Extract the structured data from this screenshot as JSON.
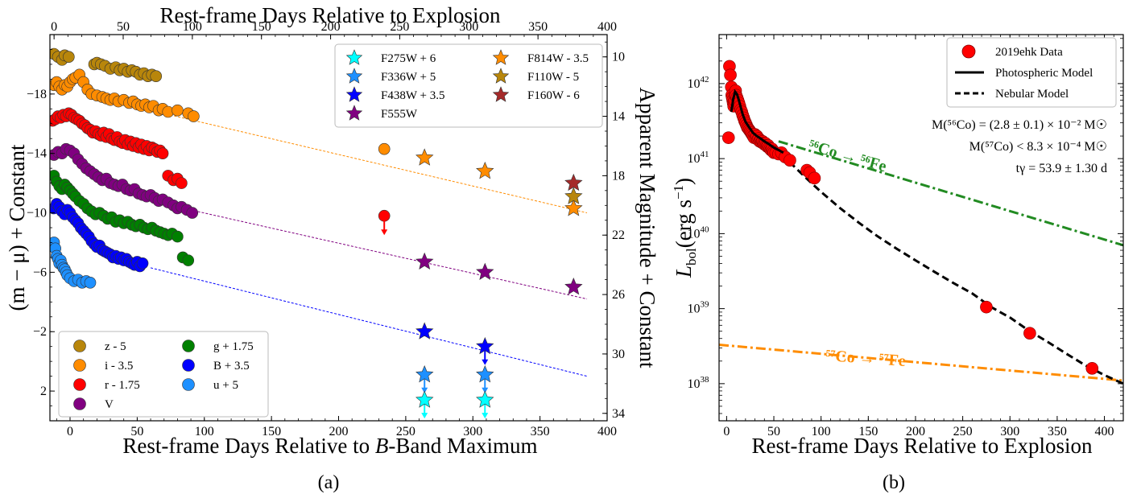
{
  "captions": {
    "a": "(a)",
    "b": "(b)"
  },
  "chart_data": [
    {
      "type": "scatter",
      "panel": "a",
      "xlabel": "Rest-frame Days Relative to B-Band Maximum",
      "ylabel": "(m − μ) + Constant",
      "x2label": "Rest-frame Days Relative to Explosion",
      "y2label": "Apparent Magnitude + Constant",
      "xlim": [
        -15,
        400
      ],
      "ylim_inverted": [
        4,
        -22
      ],
      "x2lim": [
        -3,
        400
      ],
      "xticks": [
        0,
        50,
        100,
        150,
        200,
        250,
        300,
        350,
        400
      ],
      "yticks": [
        -18,
        -14,
        -10,
        -6,
        -2,
        2
      ],
      "x2ticks": [
        0,
        50,
        100,
        150,
        200,
        250,
        300,
        350,
        400
      ],
      "y2ticks": [
        10,
        14,
        18,
        22,
        26,
        30,
        34
      ],
      "legend_ground": [
        {
          "label": "z - 5",
          "color": "#b8860b"
        },
        {
          "label": "i - 3.5",
          "color": "#ff8c00"
        },
        {
          "label": "r - 1.75",
          "color": "#ff0000"
        },
        {
          "label": "V",
          "color": "#800080"
        },
        {
          "label": "g + 1.75",
          "color": "#008000"
        },
        {
          "label": "B + 3.5",
          "color": "#0000ff"
        },
        {
          "label": "u + 5",
          "color": "#1e90ff"
        }
      ],
      "legend_hst": [
        {
          "label": "F275W + 6",
          "color": "#00ffff"
        },
        {
          "label": "F336W + 5",
          "color": "#1e90ff"
        },
        {
          "label": "F438W + 3.5",
          "color": "#0000ff"
        },
        {
          "label": "F555W",
          "color": "#800080"
        },
        {
          "label": "F814W - 3.5",
          "color": "#ff8c00"
        },
        {
          "label": "F110W - 5",
          "color": "#b8860b"
        },
        {
          "label": "F160W - 6",
          "color": "#a52a2a"
        }
      ],
      "series": [
        {
          "name": "z - 5",
          "color": "#b8860b",
          "x": [
            -12,
            -9,
            -6,
            -4,
            -1,
            18,
            20,
            23,
            26,
            30,
            34,
            37,
            40,
            43,
            46,
            49,
            52,
            55,
            58,
            61,
            64
          ],
          "y": [
            -20.7,
            -20.5,
            -20.3,
            -20.6,
            -20.5,
            -20.0,
            -20.1,
            -20.0,
            -19.9,
            -19.7,
            -19.8,
            -19.6,
            -19.7,
            -19.5,
            -19.6,
            -19.5,
            -19.3,
            -19.4,
            -19.2,
            -19.3,
            -19.2
          ]
        },
        {
          "name": "i - 3.5",
          "color": "#ff8c00",
          "x": [
            -12,
            -10,
            -8,
            -6,
            -4,
            -2,
            0,
            2,
            4,
            7,
            10,
            13,
            16,
            20,
            24,
            27,
            30,
            33,
            36,
            40,
            44,
            47,
            50,
            53,
            56,
            59,
            62,
            66,
            69,
            73,
            80,
            88,
            92,
            234
          ],
          "y": [
            -18.6,
            -18.8,
            -18.5,
            -18.3,
            -18.6,
            -18.5,
            -18.8,
            -19.0,
            -19.1,
            -19.3,
            -18.8,
            -18.3,
            -18.0,
            -17.9,
            -17.8,
            -17.7,
            -17.6,
            -17.7,
            -17.5,
            -17.6,
            -17.4,
            -17.5,
            -17.3,
            -17.2,
            -17.3,
            -17.1,
            -17.2,
            -16.9,
            -17.0,
            -16.8,
            -16.9,
            -16.7,
            -16.5,
            -14.3
          ]
        },
        {
          "name": "r - 1.75",
          "color": "#ff0000",
          "x": [
            -13,
            -11,
            -9,
            -7,
            -5,
            -3,
            -1,
            1,
            3,
            5,
            7,
            9,
            11,
            13,
            15,
            17,
            19,
            21,
            23,
            25,
            27,
            29,
            31,
            33,
            35,
            37,
            39,
            41,
            43,
            45,
            47,
            49,
            51,
            53,
            55,
            57,
            59,
            61,
            63,
            65,
            67,
            69,
            73,
            77,
            80,
            83
          ],
          "y": [
            -16.2,
            -16.3,
            -16.5,
            -16.4,
            -16.6,
            -16.5,
            -16.7,
            -16.6,
            -16.4,
            -16.3,
            -16.2,
            -16.0,
            -15.9,
            -15.7,
            -15.6,
            -15.4,
            -15.5,
            -15.3,
            -15.2,
            -15.4,
            -15.1,
            -15.3,
            -15.0,
            -14.9,
            -15.1,
            -14.8,
            -14.7,
            -14.9,
            -14.6,
            -14.8,
            -14.5,
            -14.7,
            -14.4,
            -14.6,
            -14.3,
            -14.5,
            -14.2,
            -14.4,
            -14.3,
            -14.1,
            -14.2,
            -14.0,
            -12.5,
            -12.2,
            -12.3,
            -12.0
          ]
        },
        {
          "name": "V",
          "color": "#800080",
          "x": [
            -12,
            -9,
            -6,
            -3,
            0,
            3,
            6,
            9,
            12,
            15,
            18,
            21,
            24,
            27,
            30,
            33,
            36,
            39,
            42,
            45,
            48,
            51,
            54,
            57,
            60,
            63,
            66,
            69,
            73,
            77,
            80,
            83,
            87,
            91
          ],
          "y": [
            -13.9,
            -14.1,
            -14.0,
            -14.3,
            -14.2,
            -14.0,
            -13.6,
            -13.3,
            -13.0,
            -12.8,
            -12.6,
            -12.4,
            -12.2,
            -12.3,
            -12.0,
            -11.9,
            -11.8,
            -11.9,
            -11.6,
            -11.5,
            -11.6,
            -11.3,
            -11.2,
            -11.1,
            -11.2,
            -11.0,
            -10.8,
            -10.9,
            -10.7,
            -10.5,
            -10.3,
            -10.4,
            -10.2,
            -10.0
          ]
        },
        {
          "name": "g + 1.75",
          "color": "#008000",
          "x": [
            -12,
            -10,
            -8,
            -6,
            -4,
            -2,
            0,
            2,
            4,
            7,
            10,
            13,
            16,
            19,
            22,
            25,
            28,
            31,
            34,
            37,
            40,
            43,
            46,
            49,
            52,
            55,
            58,
            61,
            64,
            67,
            70,
            73,
            76,
            80,
            84,
            88
          ],
          "y": [
            -12.5,
            -12.1,
            -11.8,
            -11.6,
            -11.9,
            -11.7,
            -11.5,
            -11.3,
            -11.1,
            -10.8,
            -10.6,
            -10.3,
            -10.1,
            -9.9,
            -10.0,
            -9.8,
            -9.6,
            -9.7,
            -9.4,
            -9.5,
            -9.3,
            -9.4,
            -9.2,
            -9.1,
            -9.2,
            -9.0,
            -8.9,
            -9.0,
            -8.8,
            -8.7,
            -8.6,
            -8.5,
            -8.6,
            -8.4,
            -7.0,
            -6.8
          ]
        },
        {
          "name": "B + 3.5",
          "color": "#0000ff",
          "x": [
            -12,
            -10,
            -8,
            -6,
            -4,
            -2,
            0,
            2,
            4,
            6,
            8,
            10,
            12,
            14,
            16,
            18,
            20,
            22,
            24,
            26,
            28,
            30,
            32,
            34,
            36,
            38,
            40,
            42,
            44,
            46,
            48,
            50,
            52,
            54
          ],
          "y": [
            -10.3,
            -10.6,
            -10.4,
            -10.1,
            -9.9,
            -10.2,
            -10.0,
            -9.7,
            -9.5,
            -9.3,
            -9.0,
            -8.8,
            -8.6,
            -8.4,
            -8.1,
            -7.9,
            -7.7,
            -7.8,
            -7.5,
            -7.4,
            -7.3,
            -7.2,
            -7.0,
            -7.1,
            -6.9,
            -7.0,
            -6.8,
            -6.9,
            -6.7,
            -6.6,
            -6.5,
            -6.7,
            -6.4,
            -6.6
          ]
        },
        {
          "name": "u + 5",
          "color": "#1e90ff",
          "x": [
            -12,
            -11,
            -10,
            -9,
            -8,
            -7,
            -6,
            -5,
            -4,
            -3,
            -2,
            0,
            3,
            6,
            9,
            12,
            15
          ],
          "y": [
            -8.0,
            -7.6,
            -7.1,
            -6.9,
            -6.6,
            -6.8,
            -6.5,
            -6.3,
            -6.2,
            -6.0,
            -5.8,
            -5.6,
            -5.4,
            -5.5,
            -5.3,
            -5.4,
            -5.3
          ]
        }
      ],
      "upper_limits_ground": [
        {
          "band": "r - 1.75",
          "x": 234,
          "y": -9.8,
          "color": "#ff0000"
        }
      ],
      "hst_points": [
        {
          "band": "F814W - 3.5",
          "x": 264,
          "y": -13.7,
          "color": "#ff8c00",
          "limit": false
        },
        {
          "band": "F814W - 3.5",
          "x": 309,
          "y": -12.8,
          "color": "#ff8c00",
          "limit": false
        },
        {
          "band": "F814W - 3.5",
          "x": 375,
          "y": -10.3,
          "color": "#ff8c00",
          "limit": false
        },
        {
          "band": "F110W - 5",
          "x": 375,
          "y": -11.1,
          "color": "#b8860b",
          "limit": false
        },
        {
          "band": "F160W - 6",
          "x": 375,
          "y": -12.0,
          "color": "#a52a2a",
          "limit": false
        },
        {
          "band": "F555W",
          "x": 264,
          "y": -6.7,
          "color": "#800080",
          "limit": false
        },
        {
          "band": "F555W",
          "x": 309,
          "y": -6.0,
          "color": "#800080",
          "limit": false
        },
        {
          "band": "F555W",
          "x": 375,
          "y": -5.0,
          "color": "#800080",
          "limit": false
        },
        {
          "band": "F438W + 3.5",
          "x": 264,
          "y": -2.0,
          "color": "#0000ff",
          "limit": false
        },
        {
          "band": "F438W + 3.5",
          "x": 309,
          "y": -1.0,
          "color": "#0000ff",
          "limit": true
        },
        {
          "band": "F336W + 5",
          "x": 264,
          "y": 0.9,
          "color": "#1e90ff",
          "limit": true
        },
        {
          "band": "F336W + 5",
          "x": 309,
          "y": 0.9,
          "color": "#1e90ff",
          "limit": true
        },
        {
          "band": "F275W + 6",
          "x": 264,
          "y": 2.6,
          "color": "#00ffff",
          "limit": true
        },
        {
          "band": "F275W + 6",
          "x": 309,
          "y": 2.6,
          "color": "#00ffff",
          "limit": true
        }
      ],
      "trend_lines": [
        {
          "color": "#ff8c00",
          "x": [
            60,
            385
          ],
          "y": [
            -16.9,
            -10.0
          ]
        },
        {
          "color": "#800080",
          "x": [
            60,
            385
          ],
          "y": [
            -10.8,
            -4.2
          ]
        },
        {
          "color": "#0000ff",
          "x": [
            60,
            385
          ],
          "y": [
            -6.3,
            1.0
          ]
        }
      ]
    },
    {
      "type": "line",
      "panel": "b",
      "xlabel": "Rest-frame Days Relative to Explosion",
      "ylabel": "L_bol (erg s⁻¹)",
      "xlim": [
        -8,
        420
      ],
      "ylog": true,
      "ylim": [
        3.2e+37,
        4.5e+42
      ],
      "xticks": [
        0,
        50,
        100,
        150,
        200,
        250,
        300,
        350,
        400
      ],
      "yticks": [
        "10^38",
        "10^39",
        "10^40",
        "10^41",
        "10^42"
      ],
      "legend": [
        {
          "label": "2019ehk Data",
          "style": "marker",
          "color": "#ff0000"
        },
        {
          "label": "Photospheric Model",
          "style": "solid",
          "color": "#000000"
        },
        {
          "label": "Nebular Model",
          "style": "dashed",
          "color": "#000000"
        }
      ],
      "annotations": [
        "M(⁵⁶Co) = (2.8 ± 0.1) × 10⁻² M☉",
        "M(⁵⁷Co) < 8.3 × 10⁻⁴ M☉",
        "tγ = 53.9 ± 1.30 d"
      ],
      "decay_labels": [
        {
          "text": "⁵⁶Co → ⁵⁶Fe",
          "color": "#228b22"
        },
        {
          "text": "⁵⁷Co → ⁵⁷Fe",
          "color": "#ff8c00"
        }
      ],
      "data_points": {
        "x": [
          2,
          3,
          4,
          5,
          5.5,
          6,
          6.5,
          7,
          7.5,
          8,
          8.5,
          9,
          9.5,
          10,
          11,
          12,
          13,
          14,
          15,
          16,
          17,
          18,
          19,
          20,
          21,
          22,
          23,
          24,
          25,
          26,
          27,
          28,
          29,
          30,
          31,
          32,
          33,
          34,
          35,
          36,
          37,
          38,
          39,
          40,
          41,
          42,
          43,
          44,
          45,
          46,
          47,
          48,
          49,
          50,
          52,
          55,
          58,
          62,
          67,
          85,
          88,
          93,
          275,
          321,
          387
        ],
        "y": [
          1.9e+41,
          1.7e+42,
          1.3e+42,
          9e+41,
          7e+41,
          6.5e+41,
          6e+41,
          5.5e+41,
          5e+41,
          5.5e+41,
          6e+41,
          7e+41,
          8e+41,
          7e+41,
          6.5e+41,
          6e+41,
          5.5e+41,
          5e+41,
          4.5e+41,
          4.2e+41,
          3.8e+41,
          3.5e+41,
          3.2e+41,
          3e+41,
          2.8e+41,
          2.6e+41,
          2.5e+41,
          2.4e+41,
          2.3e+41,
          2.2e+41,
          2.1e+41,
          2e+41,
          1.9e+41,
          2.1e+41,
          1.9e+41,
          2e+41,
          1.8e+41,
          1.85e+41,
          1.7e+41,
          1.75e+41,
          1.65e+41,
          1.7e+41,
          1.6e+41,
          1.55e+41,
          1.6e+41,
          1.5e+41,
          1.45e+41,
          1.5e+41,
          1.4e+41,
          1.35e+41,
          1.3e+41,
          1.35e+41,
          1.25e+41,
          1.2e+41,
          1.2e+41,
          1.15e+41,
          1.2e+41,
          1.05e+41,
          9.5e+40,
          7e+40,
          6.5e+40,
          5.5e+40,
          1.05e+39,
          4.7e+38,
          1.6e+38
        ]
      },
      "photospheric_model": {
        "x": [
          5,
          7,
          9,
          11,
          13,
          15,
          17,
          20,
          24,
          28,
          32,
          36,
          40,
          45,
          50,
          55,
          60
        ],
        "y": [
          4.2e+41,
          6.2e+41,
          7.8e+41,
          7.2e+41,
          6e+41,
          4.8e+41,
          3.9e+41,
          3.1e+41,
          2.6e+41,
          2.2e+41,
          2e+41,
          1.85e+41,
          1.7e+41,
          1.55e+41,
          1.4e+41,
          1.3e+41,
          1.2e+41
        ]
      },
      "nebular_model": {
        "x": [
          40,
          50,
          60,
          70,
          80,
          90,
          100,
          120,
          140,
          160,
          180,
          200,
          220,
          240,
          260,
          280,
          300,
          320,
          340,
          360,
          380,
          400,
          420
        ],
        "y": [
          1.8e+41,
          1.45e+41,
          1.1e+41,
          8.2e+40,
          6.2e+40,
          4.7e+40,
          3.6e+40,
          2.2e+40,
          1.4e+40,
          9.2e+39,
          6.3e+39,
          4.4e+39,
          3.1e+39,
          2.2e+39,
          1.6e+39,
          1.05e+39,
          7.6e+38,
          5.1e+38,
          3.6e+38,
          2.5e+38,
          1.75e+38,
          1.3e+38,
          1e+38
        ]
      },
      "co56_line": {
        "x": [
          55,
          420
        ],
        "y": [
          1.7e+41,
          7e+39
        ]
      },
      "co57_line": {
        "x": [
          -8,
          420
        ],
        "y": [
          3.3e+38,
          1.1e+38
        ]
      }
    }
  ]
}
